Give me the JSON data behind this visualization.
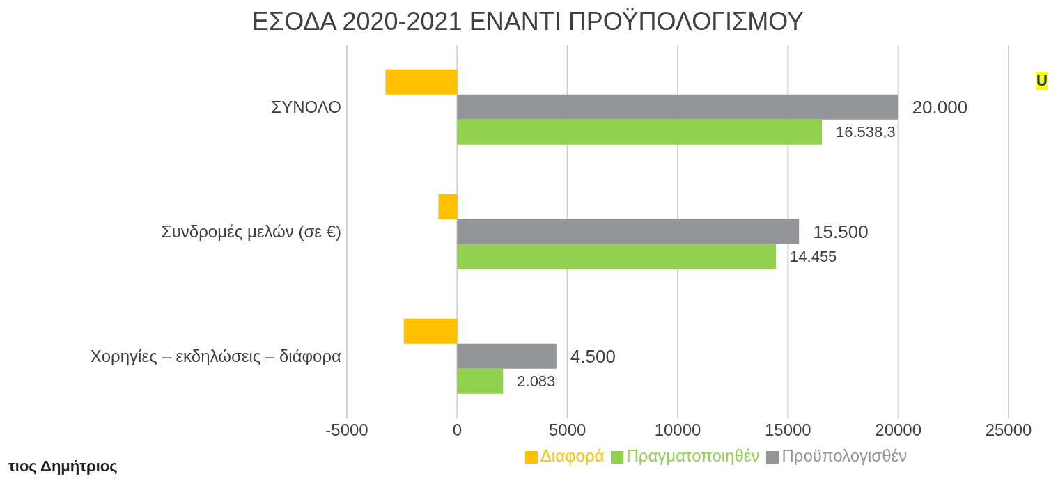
{
  "chart_data": {
    "type": "bar",
    "orientation": "horizontal",
    "title": "ΕΣΟΔΑ 2020-2021 ΕΝΑΝΤΙ ΠΡΟΫΠΟΛΟΓΙΣΜΟΥ",
    "categories": [
      "ΣΥΝΟΛΟ",
      "Συνδρομές μελών (σε €)",
      "Χορηγίες – εκδηλώσεις – διάφορα"
    ],
    "series": [
      {
        "name": "Διαφορά",
        "color": "#ffc000",
        "values": [
          -3250,
          -850,
          -2420
        ]
      },
      {
        "name": "Προϋπολογισθέν",
        "color": "#939598",
        "values": [
          20000,
          15500,
          4500
        ],
        "value_labels": [
          "20.000",
          "15.500",
          "4.500"
        ]
      },
      {
        "name": "Πραγματοποιηθέν",
        "color": "#92d050",
        "values": [
          16538.3,
          14455,
          2083
        ],
        "value_labels": [
          "16.538,3",
          "14.455",
          "2.083"
        ]
      }
    ],
    "xlim": [
      -5000,
      25000
    ],
    "xticks": [
      -5000,
      0,
      5000,
      10000,
      15000,
      20000,
      25000
    ],
    "grid": "x",
    "legend": "bottom",
    "annotations": [
      "τιος Δημήτριος",
      "U"
    ]
  }
}
